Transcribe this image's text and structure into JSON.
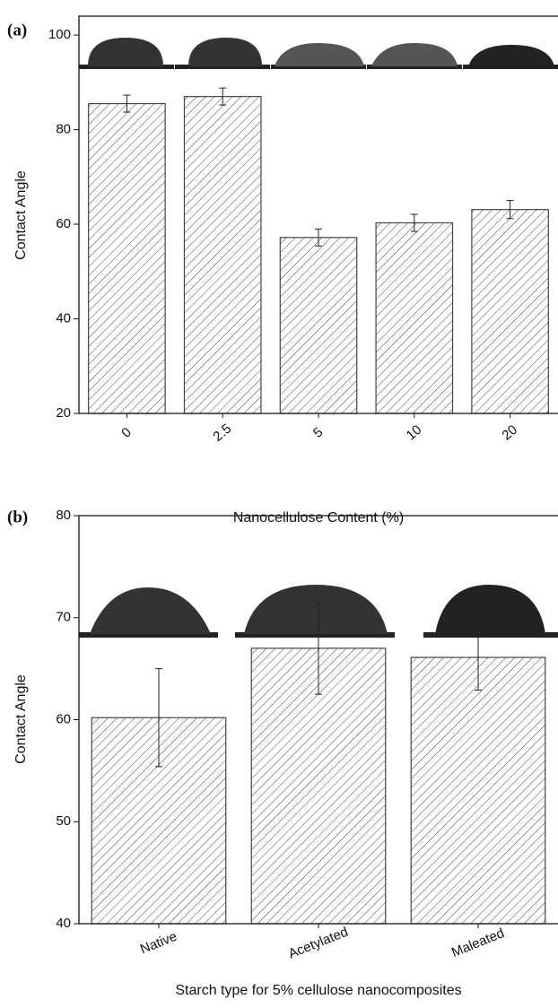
{
  "chart_data": [
    {
      "type": "bar",
      "panel_label": "(a)",
      "xlabel": "Nanocellulose Content (%)",
      "ylabel": "Contact Angle",
      "categories": [
        "0",
        "2.5",
        "5",
        "10",
        "20"
      ],
      "values": [
        85.5,
        87,
        57.2,
        60.3,
        63.1
      ],
      "errors": [
        1.8,
        1.8,
        1.8,
        1.8,
        1.9
      ],
      "color": "#444444",
      "ylim": [
        20,
        104
      ],
      "yticks": [
        20,
        40,
        60,
        80,
        100
      ]
    },
    {
      "type": "bar",
      "panel_label": "(b)",
      "xlabel": "Starch type for 5% cellulose nanocomposites",
      "ylabel": "Contact Angle",
      "categories": [
        "Native",
        "Acetylated",
        "Maleated"
      ],
      "values": [
        60.2,
        67,
        66.1
      ],
      "errors": [
        4.8,
        4.5,
        3.2
      ],
      "color": "#444444",
      "ylim": [
        40,
        80
      ],
      "yticks": [
        40,
        50,
        60,
        70,
        80
      ]
    }
  ]
}
